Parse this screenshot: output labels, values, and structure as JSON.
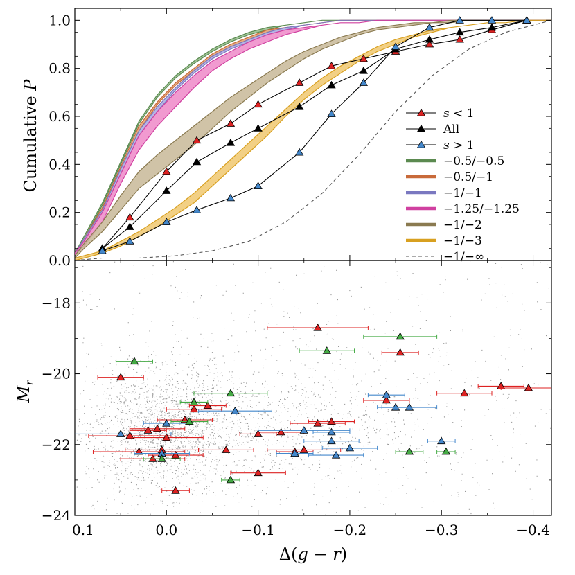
{
  "chart_data": [
    {
      "type": "line",
      "panel": "top",
      "ylabel": "Cumulative P",
      "ylabel_text": "Cumulative",
      "ylabel_italic": "P",
      "xlim": [
        0.1,
        -0.42
      ],
      "ylim": [
        0.0,
        1.05
      ],
      "yticks": [
        0.0,
        0.2,
        0.4,
        0.6,
        0.8,
        1.0
      ],
      "ytick_labels": [
        "0.0",
        "0.2",
        "0.4",
        "0.6",
        "0.8",
        "1.0"
      ],
      "xgrid": [
        0.1,
        0.09,
        0.07,
        0.05,
        0.03,
        0.01,
        -0.01,
        -0.03,
        -0.05,
        -0.07,
        -0.09,
        -0.11,
        -0.13,
        -0.15,
        -0.17,
        -0.19,
        -0.21,
        -0.23,
        -0.25,
        -0.27,
        -0.29,
        -0.31,
        -0.33,
        -0.35,
        -0.37,
        -0.39,
        -0.42
      ],
      "bands": [
        {
          "name": "−0.5/−0.5",
          "color": "#5b8a50",
          "fill": "#8fb886",
          "lower": [
            0.02,
            0.09,
            0.23,
            0.4,
            0.57,
            0.68,
            0.76,
            0.82,
            0.87,
            0.91,
            0.94,
            0.96,
            0.98,
            0.99,
            1.0,
            1.0,
            1.0,
            1.0,
            1.0,
            1.0,
            1.0,
            1.0,
            1.0,
            1.0,
            1.0,
            1.0,
            1.0
          ],
          "upper": [
            0.03,
            0.1,
            0.24,
            0.41,
            0.58,
            0.69,
            0.77,
            0.83,
            0.88,
            0.92,
            0.95,
            0.97,
            0.98,
            0.99,
            1.0,
            1.0,
            1.0,
            1.0,
            1.0,
            1.0,
            1.0,
            1.0,
            1.0,
            1.0,
            1.0,
            1.0,
            1.0
          ]
        },
        {
          "name": "−0.5/−1",
          "color": "#c86a3a",
          "fill": "#e0a070",
          "lower": [
            0.02,
            0.08,
            0.21,
            0.38,
            0.54,
            0.65,
            0.73,
            0.79,
            0.85,
            0.89,
            0.92,
            0.95,
            0.97,
            0.98,
            0.99,
            1.0,
            1.0,
            1.0,
            1.0,
            1.0,
            1.0,
            1.0,
            1.0,
            1.0,
            1.0,
            1.0,
            1.0
          ],
          "upper": [
            0.03,
            0.09,
            0.22,
            0.39,
            0.56,
            0.66,
            0.74,
            0.8,
            0.86,
            0.9,
            0.93,
            0.96,
            0.97,
            0.98,
            0.99,
            1.0,
            1.0,
            1.0,
            1.0,
            1.0,
            1.0,
            1.0,
            1.0,
            1.0,
            1.0,
            1.0,
            1.0
          ]
        },
        {
          "name": "−1/−1",
          "color": "#7a78c0",
          "fill": "#aaa8e0",
          "lower": [
            0.02,
            0.08,
            0.2,
            0.36,
            0.52,
            0.62,
            0.71,
            0.78,
            0.84,
            0.88,
            0.91,
            0.94,
            0.96,
            0.98,
            0.99,
            1.0,
            1.0,
            1.0,
            1.0,
            1.0,
            1.0,
            1.0,
            1.0,
            1.0,
            1.0,
            1.0,
            1.0
          ],
          "upper": [
            0.03,
            0.09,
            0.21,
            0.38,
            0.54,
            0.64,
            0.72,
            0.79,
            0.85,
            0.89,
            0.92,
            0.95,
            0.97,
            0.98,
            0.99,
            1.0,
            1.0,
            1.0,
            1.0,
            1.0,
            1.0,
            1.0,
            1.0,
            1.0,
            1.0,
            1.0,
            1.0
          ]
        },
        {
          "name": "−1.25/−1.25",
          "color": "#d040a0",
          "fill": "#ee88c8",
          "lower": [
            0.02,
            0.06,
            0.16,
            0.32,
            0.46,
            0.56,
            0.64,
            0.72,
            0.79,
            0.84,
            0.88,
            0.91,
            0.94,
            0.96,
            0.98,
            0.99,
            0.99,
            1.0,
            1.0,
            1.0,
            1.0,
            1.0,
            1.0,
            1.0,
            1.0,
            1.0,
            1.0
          ],
          "upper": [
            0.03,
            0.08,
            0.2,
            0.36,
            0.52,
            0.62,
            0.7,
            0.77,
            0.83,
            0.87,
            0.91,
            0.94,
            0.96,
            0.97,
            0.98,
            0.99,
            0.99,
            1.0,
            1.0,
            1.0,
            1.0,
            1.0,
            1.0,
            1.0,
            1.0,
            1.0,
            1.0
          ]
        },
        {
          "name": "−1/−2",
          "color": "#8a7a50",
          "fill": "#c8b898",
          "lower": [
            0.01,
            0.05,
            0.12,
            0.21,
            0.3,
            0.36,
            0.42,
            0.48,
            0.55,
            0.62,
            0.68,
            0.74,
            0.79,
            0.84,
            0.88,
            0.91,
            0.94,
            0.96,
            0.97,
            0.98,
            0.99,
            0.99,
            1.0,
            1.0,
            1.0,
            1.0,
            1.0
          ],
          "upper": [
            0.02,
            0.07,
            0.16,
            0.27,
            0.37,
            0.44,
            0.5,
            0.56,
            0.62,
            0.68,
            0.73,
            0.78,
            0.83,
            0.87,
            0.9,
            0.93,
            0.95,
            0.97,
            0.98,
            0.99,
            0.99,
            1.0,
            1.0,
            1.0,
            1.0,
            1.0,
            1.0
          ]
        },
        {
          "name": "−1/−3",
          "color": "#d8a020",
          "fill": "#f0c870",
          "lower": [
            0.0,
            0.01,
            0.03,
            0.06,
            0.1,
            0.14,
            0.19,
            0.24,
            0.31,
            0.38,
            0.45,
            0.52,
            0.6,
            0.67,
            0.73,
            0.78,
            0.83,
            0.87,
            0.9,
            0.93,
            0.95,
            0.97,
            0.98,
            0.99,
            0.99,
            1.0,
            1.0
          ],
          "upper": [
            0.01,
            0.02,
            0.04,
            0.08,
            0.12,
            0.17,
            0.22,
            0.28,
            0.35,
            0.42,
            0.49,
            0.56,
            0.63,
            0.7,
            0.76,
            0.81,
            0.85,
            0.89,
            0.92,
            0.94,
            0.96,
            0.97,
            0.98,
            0.99,
            0.99,
            1.0,
            1.0
          ]
        }
      ],
      "dashed_line": {
        "name": "−1/−∞",
        "color": "#555555",
        "x": [
          0.1,
          0.07,
          0.03,
          -0.01,
          -0.05,
          -0.09,
          -0.13,
          -0.17,
          -0.21,
          -0.25,
          -0.29,
          -0.33,
          -0.37,
          -0.42
        ],
        "y": [
          0.0,
          0.01,
          0.01,
          0.02,
          0.04,
          0.08,
          0.16,
          0.28,
          0.44,
          0.62,
          0.77,
          0.88,
          0.95,
          1.0
        ]
      },
      "series": [
        {
          "name": "s < 1",
          "name_italic": "s",
          "name_rest": " < 1",
          "marker_color": "#dd2222",
          "x": [
            0.07,
            0.04,
            0.0,
            -0.033,
            -0.07,
            -0.1,
            -0.145,
            -0.18,
            -0.215,
            -0.25,
            -0.287,
            -0.32,
            -0.355,
            -0.393
          ],
          "y": [
            0.05,
            0.18,
            0.37,
            0.5,
            0.57,
            0.65,
            0.74,
            0.81,
            0.84,
            0.87,
            0.9,
            0.92,
            0.96,
            1.0
          ]
        },
        {
          "name": "All",
          "name_italic": "",
          "name_rest": "All",
          "marker_color": "#000000",
          "x": [
            0.07,
            0.04,
            0.0,
            -0.033,
            -0.07,
            -0.1,
            -0.145,
            -0.18,
            -0.215,
            -0.25,
            -0.287,
            -0.32,
            -0.355,
            -0.393
          ],
          "y": [
            0.05,
            0.14,
            0.29,
            0.41,
            0.49,
            0.55,
            0.64,
            0.73,
            0.79,
            0.88,
            0.92,
            0.95,
            0.97,
            1.0
          ]
        },
        {
          "name": "s > 1",
          "name_italic": "s",
          "name_rest": " > 1",
          "marker_color": "#4488cc",
          "x": [
            0.07,
            0.04,
            0.0,
            -0.033,
            -0.07,
            -0.1,
            -0.145,
            -0.18,
            -0.215,
            -0.25,
            -0.287,
            -0.32,
            -0.355,
            -0.393
          ],
          "y": [
            0.04,
            0.08,
            0.16,
            0.21,
            0.26,
            0.31,
            0.45,
            0.61,
            0.74,
            0.89,
            0.97,
            1.0,
            1.0,
            1.0
          ]
        }
      ],
      "legend_position": "center-right"
    },
    {
      "type": "scatter",
      "panel": "bottom",
      "xlabel": "Δ(g − r)",
      "xlabel_prefix": "Δ(",
      "xlabel_g": "g",
      "xlabel_mid": " − ",
      "xlabel_r": "r",
      "xlabel_suffix": ")",
      "ylabel": "M_r",
      "ylabel_main": "M",
      "ylabel_sub": "r",
      "xlim": [
        0.1,
        -0.42
      ],
      "ylim": [
        -24.0,
        -16.8
      ],
      "xticks": [
        0.1,
        0.0,
        -0.1,
        -0.2,
        -0.3,
        -0.4
      ],
      "xtick_labels": [
        "0.1",
        "0.0",
        "−0.1",
        "−0.2",
        "−0.3",
        "−0.4"
      ],
      "yticks": [
        -18,
        -20,
        -22,
        -24
      ],
      "ytick_labels": [
        "−18",
        "−20",
        "−22",
        "−24"
      ],
      "background_points": {
        "count": 13000,
        "color": "#777777",
        "description_seed": 7
      },
      "groups": [
        {
          "name": "s < 1",
          "color": "#dd2222",
          "points": [
            {
              "x": -0.165,
              "y": -18.7,
              "xerr": 0.055
            },
            {
              "x": 0.05,
              "y": -20.1,
              "xerr": 0.025
            },
            {
              "x": -0.255,
              "y": -19.4,
              "xerr": 0.02
            },
            {
              "x": 0.04,
              "y": -21.75,
              "xerr": 0.045
            },
            {
              "x": 0.02,
              "y": -21.6,
              "xerr": 0.02
            },
            {
              "x": 0.01,
              "y": -21.55,
              "xerr": 0.03
            },
            {
              "x": 0.0,
              "y": -21.8,
              "xerr": 0.04
            },
            {
              "x": -0.03,
              "y": -21.0,
              "xerr": 0.03
            },
            {
              "x": -0.045,
              "y": -20.9,
              "xerr": 0.02
            },
            {
              "x": -0.02,
              "y": -21.3,
              "xerr": 0.03
            },
            {
              "x": -0.1,
              "y": -21.7,
              "xerr": 0.02
            },
            {
              "x": -0.125,
              "y": -21.65,
              "xerr": 0.025
            },
            {
              "x": -0.165,
              "y": -21.4,
              "xerr": 0.03
            },
            {
              "x": -0.18,
              "y": -21.35,
              "xerr": 0.025
            },
            {
              "x": 0.03,
              "y": -22.2,
              "xerr": 0.05
            },
            {
              "x": 0.015,
              "y": -22.4,
              "xerr": 0.035
            },
            {
              "x": 0.005,
              "y": -22.15,
              "xerr": 0.04
            },
            {
              "x": -0.01,
              "y": -22.3,
              "xerr": 0.03
            },
            {
              "x": -0.065,
              "y": -22.15,
              "xerr": 0.03
            },
            {
              "x": -0.15,
              "y": -22.15,
              "xerr": 0.04
            },
            {
              "x": -0.14,
              "y": -22.2,
              "xerr": 0.02
            },
            {
              "x": -0.1,
              "y": -22.8,
              "xerr": 0.03
            },
            {
              "x": -0.01,
              "y": -23.3,
              "xerr": 0.015
            },
            {
              "x": -0.24,
              "y": -20.75,
              "xerr": 0.025
            },
            {
              "x": -0.325,
              "y": -20.55,
              "xerr": 0.03
            },
            {
              "x": -0.365,
              "y": -20.35,
              "xerr": 0.025
            },
            {
              "x": -0.395,
              "y": -20.4,
              "xerr": 0.03
            }
          ]
        },
        {
          "name": "s > 1",
          "color": "#4488cc",
          "points": [
            {
              "x": 0.05,
              "y": -21.7,
              "xerr": 0.055
            },
            {
              "x": 0.0,
              "y": -21.4,
              "xerr": 0.025
            },
            {
              "x": -0.075,
              "y": -21.05,
              "xerr": 0.04
            },
            {
              "x": -0.15,
              "y": -21.6,
              "xerr": 0.05
            },
            {
              "x": -0.18,
              "y": -21.65,
              "xerr": 0.02
            },
            {
              "x": -0.18,
              "y": -21.9,
              "xerr": 0.03
            },
            {
              "x": -0.14,
              "y": -22.25,
              "xerr": 0.02
            },
            {
              "x": -0.185,
              "y": -22.3,
              "xerr": 0.03
            },
            {
              "x": -0.2,
              "y": -22.1,
              "xerr": 0.03
            },
            {
              "x": -0.24,
              "y": -20.6,
              "xerr": 0.02
            },
            {
              "x": -0.25,
              "y": -20.95,
              "xerr": 0.02
            },
            {
              "x": -0.265,
              "y": -20.95,
              "xerr": 0.03
            },
            {
              "x": -0.3,
              "y": -21.9,
              "xerr": 0.015
            },
            {
              "x": 0.005,
              "y": -22.25,
              "xerr": 0.03
            }
          ]
        },
        {
          "name": "green",
          "color": "#44aa44",
          "points": [
            {
              "x": 0.035,
              "y": -19.65,
              "xerr": 0.02
            },
            {
              "x": -0.175,
              "y": -19.35,
              "xerr": 0.03
            },
            {
              "x": -0.255,
              "y": -18.95,
              "xerr": 0.04
            },
            {
              "x": -0.07,
              "y": -20.55,
              "xerr": 0.04
            },
            {
              "x": -0.03,
              "y": -20.8,
              "xerr": 0.015
            },
            {
              "x": -0.025,
              "y": -21.35,
              "xerr": 0.02
            },
            {
              "x": 0.005,
              "y": -22.4,
              "xerr": 0.02
            },
            {
              "x": -0.265,
              "y": -22.2,
              "xerr": 0.015
            },
            {
              "x": -0.305,
              "y": -22.2,
              "xerr": 0.01
            },
            {
              "x": -0.07,
              "y": -23.0,
              "xerr": 0.01
            }
          ]
        }
      ]
    }
  ]
}
